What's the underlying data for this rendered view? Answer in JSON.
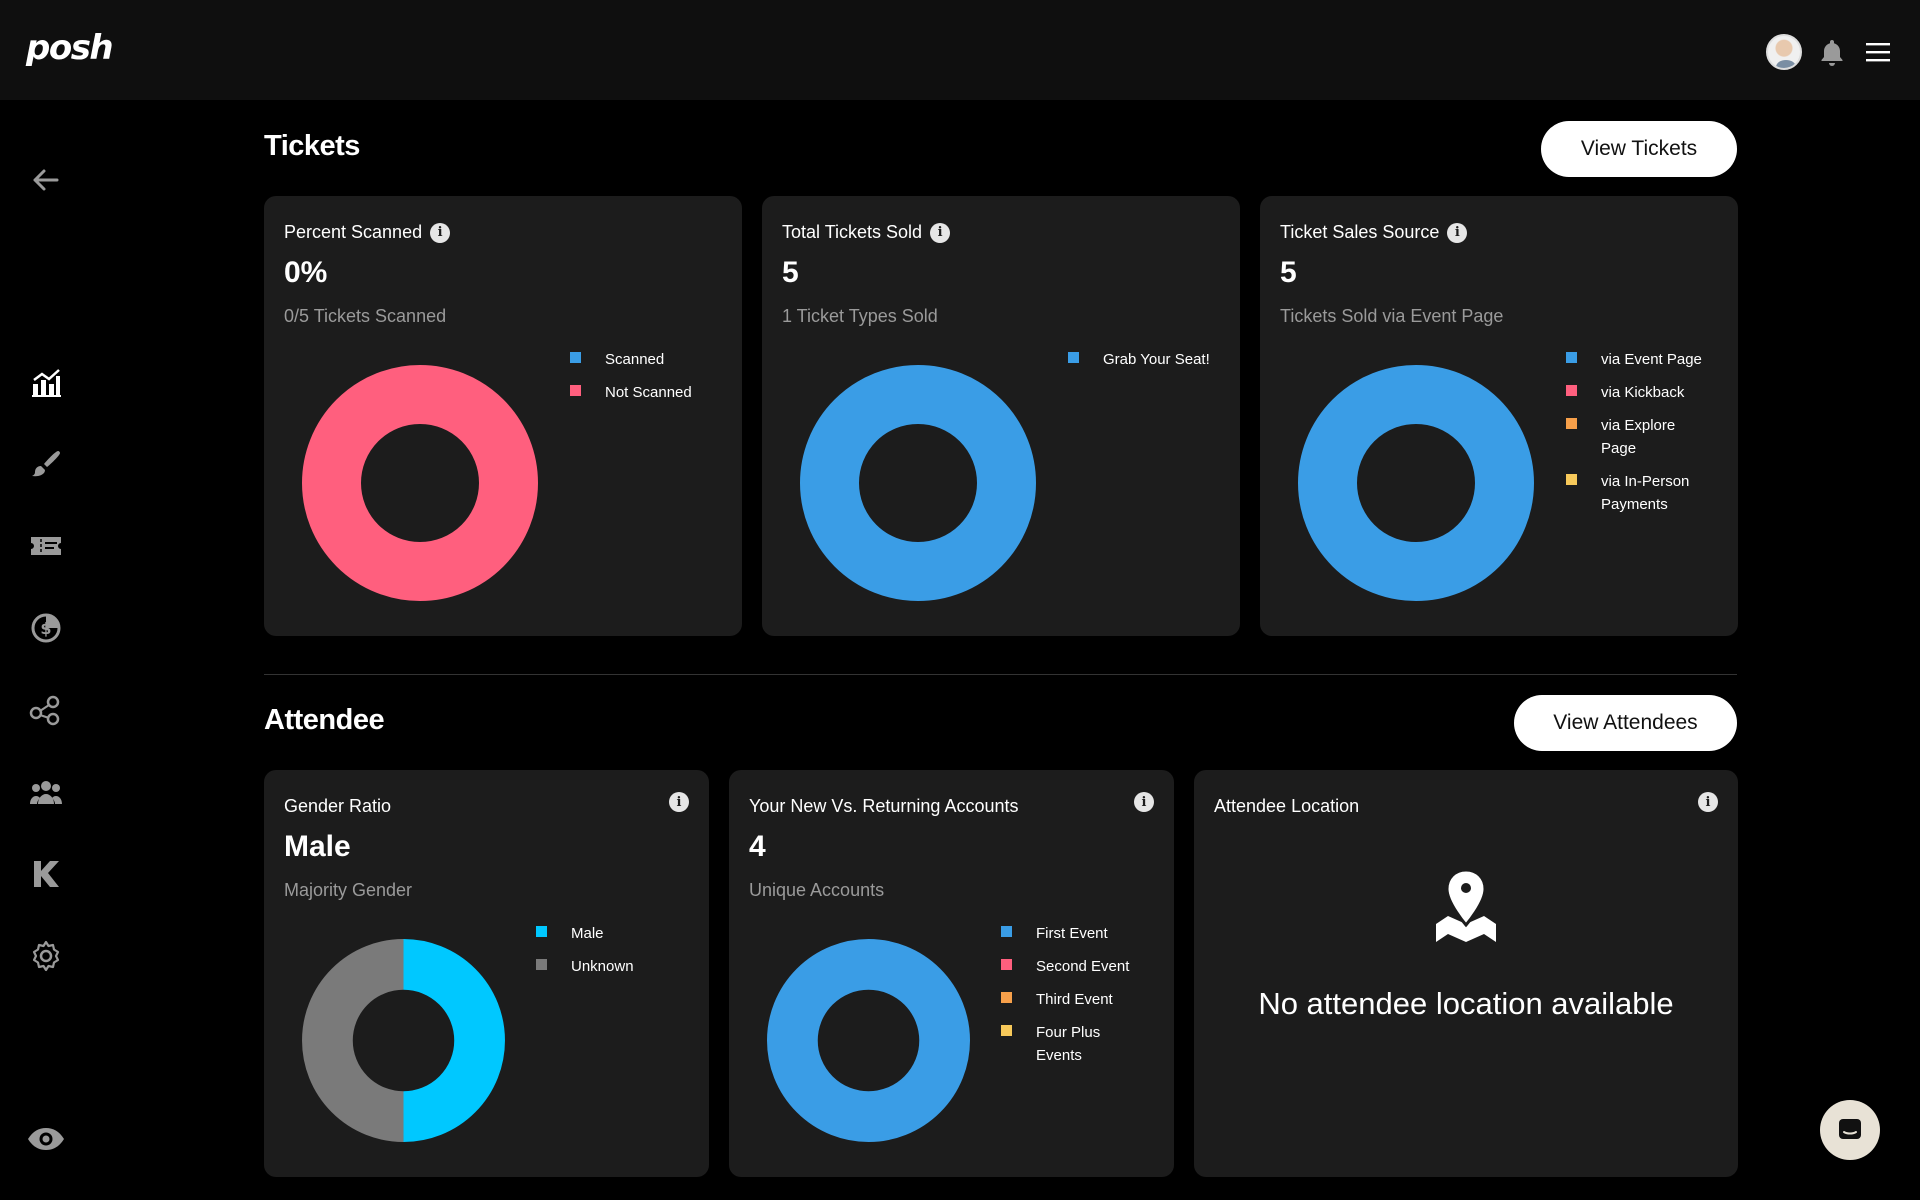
{
  "app": {
    "logo": "posh"
  },
  "tickets": {
    "title": "Tickets",
    "view_button": "View Tickets",
    "cards": [
      {
        "title": "Percent Scanned",
        "value": "0%",
        "subtitle": "0/5 Tickets Scanned",
        "legend": [
          {
            "label": "Scanned",
            "color": "#3a9de6"
          },
          {
            "label": "Not Scanned",
            "color": "#ff5f7e"
          }
        ]
      },
      {
        "title": "Total Tickets Sold",
        "value": "5",
        "subtitle": "1 Ticket Types Sold",
        "legend": [
          {
            "label": "Grab Your Seat!",
            "color": "#3a9de6"
          }
        ]
      },
      {
        "title": "Ticket Sales Source",
        "value": "5",
        "subtitle": "Tickets Sold via Event Page",
        "legend": [
          {
            "label": "via Event Page",
            "color": "#3a9de6"
          },
          {
            "label": "via Kickback",
            "color": "#ff5f7e"
          },
          {
            "label": "via Explore Page",
            "color": "#f7a04a"
          },
          {
            "label": "via In-Person Payments",
            "color": "#f7c95a"
          }
        ]
      }
    ]
  },
  "attendee": {
    "title": "Attendee",
    "view_button": "View Attendees",
    "cards": [
      {
        "title": "Gender Ratio",
        "value": "Male",
        "subtitle": "Majority Gender",
        "legend": [
          {
            "label": "Male",
            "color": "#00c8ff"
          },
          {
            "label": "Unknown",
            "color": "#7a7a7a"
          }
        ]
      },
      {
        "title": "Your New Vs. Returning Accounts",
        "value": "4",
        "subtitle": "Unique Accounts",
        "legend": [
          {
            "label": "First Event",
            "color": "#3a9de6"
          },
          {
            "label": "Second Event",
            "color": "#ff5f7e"
          },
          {
            "label": "Third Event",
            "color": "#f7a04a"
          },
          {
            "label": "Four Plus Events",
            "color": "#f7c95a"
          }
        ]
      },
      {
        "title": "Attendee Location",
        "empty_message": "No attendee location available"
      }
    ]
  },
  "chart_data": [
    {
      "type": "pie",
      "title": "Percent Scanned",
      "labels": [
        "Scanned",
        "Not Scanned"
      ],
      "values": [
        0,
        5
      ]
    },
    {
      "type": "pie",
      "title": "Total Tickets Sold",
      "labels": [
        "Grab Your Seat!"
      ],
      "values": [
        5
      ]
    },
    {
      "type": "pie",
      "title": "Ticket Sales Source",
      "labels": [
        "via Event Page",
        "via Kickback",
        "via Explore Page",
        "via In-Person Payments"
      ],
      "values": [
        5,
        0,
        0,
        0
      ]
    },
    {
      "type": "pie",
      "title": "Gender Ratio",
      "labels": [
        "Male",
        "Unknown"
      ],
      "values": [
        50,
        50
      ]
    },
    {
      "type": "pie",
      "title": "Your New Vs. Returning Accounts",
      "labels": [
        "First Event",
        "Second Event",
        "Third Event",
        "Four Plus Events"
      ],
      "values": [
        4,
        0,
        0,
        0
      ]
    }
  ]
}
